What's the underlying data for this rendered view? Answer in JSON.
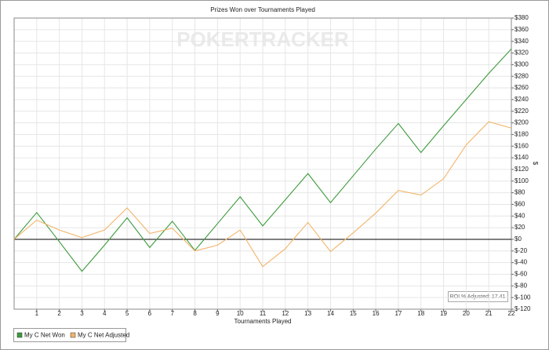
{
  "chart_data": {
    "type": "line",
    "title": "Prizes Won over Tournaments Played",
    "watermark": "POKERTRACKER",
    "x_label": "Tournaments Played",
    "y_label": "$",
    "annotation": "ROI % Adjusted: 17.41",
    "x": [
      0,
      1,
      2,
      3,
      4,
      5,
      6,
      7,
      8,
      9,
      10,
      11,
      12,
      13,
      14,
      15,
      16,
      17,
      18,
      19,
      20,
      21,
      22
    ],
    "series": [
      {
        "name": "My C Net Won",
        "color": "#3c9a3c",
        "values": [
          0,
          46,
          -4,
          -55,
          -10,
          37,
          -14,
          31,
          -19,
          27,
          73,
          23,
          68,
          113,
          63,
          109,
          155,
          199,
          149,
          195,
          240,
          285,
          327
        ]
      },
      {
        "name": "My C Net Adjusted",
        "color": "#f2b469",
        "values": [
          0,
          33,
          16,
          3,
          16,
          54,
          10,
          19,
          -20,
          -10,
          16,
          -47,
          -16,
          29,
          -21,
          11,
          45,
          84,
          76,
          104,
          162,
          202,
          191
        ]
      }
    ],
    "xlim": [
      0,
      22
    ],
    "xticks": [
      1,
      2,
      3,
      4,
      5,
      6,
      7,
      8,
      9,
      10,
      11,
      12,
      13,
      14,
      15,
      16,
      17,
      18,
      19,
      20,
      21,
      22
    ],
    "ylim": [
      -120,
      380
    ],
    "yticks": [
      {
        "value": -120,
        "label": "$-120"
      },
      {
        "value": -100,
        "label": "$-100"
      },
      {
        "value": -80,
        "label": "$-80"
      },
      {
        "value": -60,
        "label": "$-60"
      },
      {
        "value": -40,
        "label": "$-40"
      },
      {
        "value": -20,
        "label": "$-20"
      },
      {
        "value": 0,
        "label": "$0"
      },
      {
        "value": 20,
        "label": "$20"
      },
      {
        "value": 40,
        "label": "$40"
      },
      {
        "value": 60,
        "label": "$60"
      },
      {
        "value": 80,
        "label": "$80"
      },
      {
        "value": 100,
        "label": "$100"
      },
      {
        "value": 120,
        "label": "$120"
      },
      {
        "value": 140,
        "label": "$140"
      },
      {
        "value": 160,
        "label": "$160"
      },
      {
        "value": 180,
        "label": "$180"
      },
      {
        "value": 200,
        "label": "$200"
      },
      {
        "value": 220,
        "label": "$220"
      },
      {
        "value": 240,
        "label": "$240"
      },
      {
        "value": 260,
        "label": "$260"
      },
      {
        "value": 280,
        "label": "$280"
      },
      {
        "value": 300,
        "label": "$300"
      },
      {
        "value": 320,
        "label": "$320"
      },
      {
        "value": 340,
        "label": "$340"
      },
      {
        "value": 360,
        "label": "$360"
      },
      {
        "value": 380,
        "label": "$380"
      }
    ],
    "grid": true
  }
}
